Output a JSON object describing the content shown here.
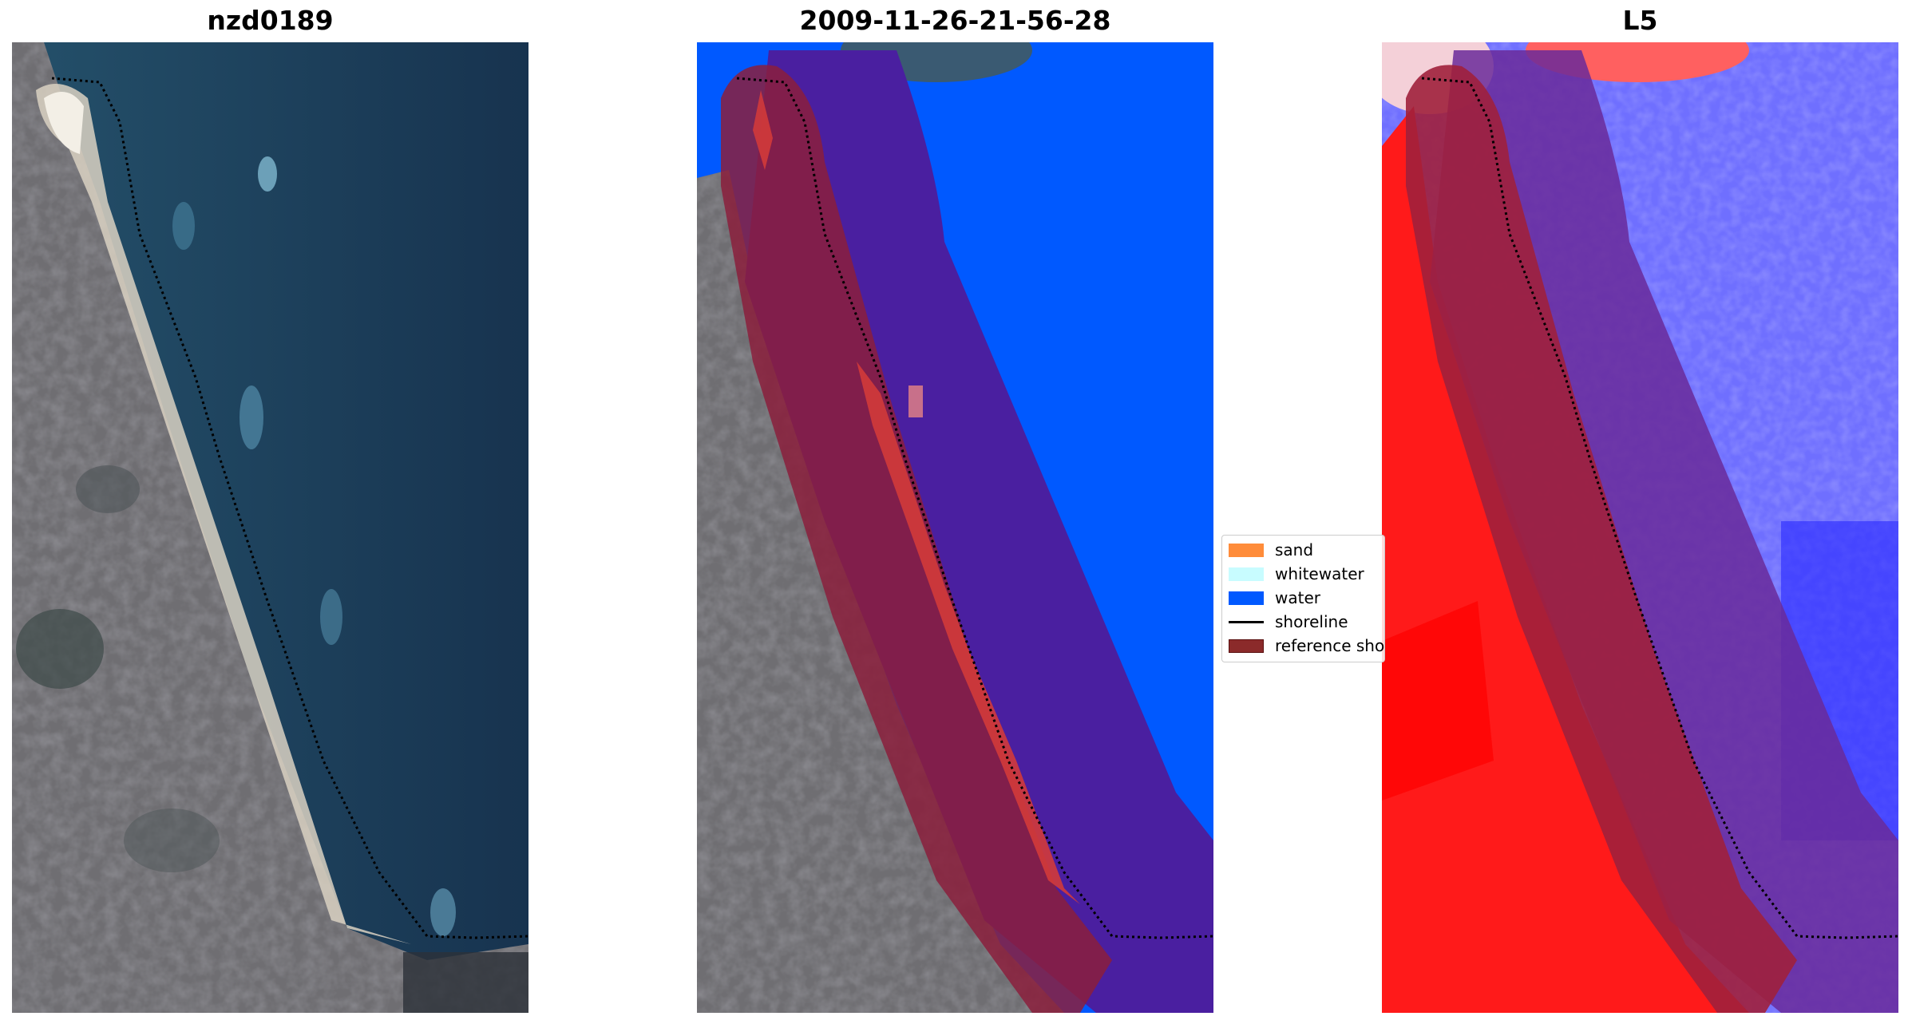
{
  "titles": {
    "left": "nzd0189",
    "middle": "2009-11-26-21-56-28",
    "right": "L5"
  },
  "legend": {
    "items": [
      {
        "label": "sand",
        "color": "#ff8c3a"
      },
      {
        "label": "whitewater",
        "color": "#c8fcff"
      },
      {
        "label": "water",
        "color": "#0059ff"
      },
      {
        "label": "shoreline",
        "color": "#000000"
      },
      {
        "label": "reference shoreline buffer",
        "color": "#8b2a2a"
      }
    ]
  },
  "colors": {
    "ocean_rgb": "#1c3c5c",
    "land_rgb": "#6f6e72",
    "water_class": "#0059ff",
    "buffer": "#8b1e3c",
    "index_land": "#ff1a1a",
    "index_water": "#3a3aff"
  }
}
